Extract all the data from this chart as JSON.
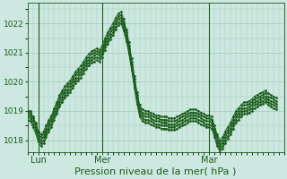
{
  "background_color": "#cce8e0",
  "grid_color": "#a0c8b8",
  "line_color": "#1a5c1a",
  "marker_color": "#1a5c1a",
  "xlabel": "Pression niveau de la mer( hPa )",
  "xlabel_fontsize": 8,
  "yticks": [
    1018,
    1019,
    1020,
    1021,
    1022
  ],
  "ylim": [
    1017.6,
    1022.7
  ],
  "xlim": [
    0,
    96
  ],
  "xtick_positions": [
    4,
    28,
    68
  ],
  "xtick_labels": [
    "Lun",
    "Mer",
    "Mar"
  ],
  "vline_positions": [
    4,
    28,
    68
  ],
  "series": [
    [
      1019.0,
      1019.0,
      1018.8,
      1018.6,
      1018.3,
      1018.2,
      1018.3,
      1018.5,
      1018.7,
      1018.85,
      1019.1,
      1019.3,
      1019.55,
      1019.7,
      1019.85,
      1019.95,
      1020.05,
      1020.2,
      1020.35,
      1020.45,
      1020.55,
      1020.7,
      1020.85,
      1020.95,
      1021.05,
      1021.1,
      1021.15,
      1021.1,
      1021.25,
      1021.5,
      1021.7,
      1021.85,
      1022.0,
      1022.2,
      1022.35,
      1022.4,
      1022.15,
      1021.8,
      1021.35,
      1020.8,
      1020.2,
      1019.65,
      1019.2,
      1019.05,
      1019.0,
      1019.0,
      1018.95,
      1018.9,
      1018.85,
      1018.85,
      1018.8,
      1018.8,
      1018.8,
      1018.75,
      1018.75,
      1018.75,
      1018.8,
      1018.85,
      1018.9,
      1018.95,
      1019.0,
      1019.05,
      1019.05,
      1019.05,
      1019.0,
      1018.95,
      1018.9,
      1018.85,
      1018.85,
      1018.8,
      1018.5,
      1018.2,
      1018.0,
      1018.1,
      1018.3,
      1018.45,
      1018.6,
      1018.8,
      1019.0,
      1019.1,
      1019.2,
      1019.3,
      1019.3,
      1019.35,
      1019.4,
      1019.5,
      1019.55,
      1019.6,
      1019.65,
      1019.7,
      1019.6,
      1019.55,
      1019.5,
      1019.45
    ],
    [
      1019.0,
      1018.95,
      1018.75,
      1018.55,
      1018.25,
      1018.1,
      1018.2,
      1018.4,
      1018.6,
      1018.75,
      1019.0,
      1019.2,
      1019.45,
      1019.6,
      1019.75,
      1019.85,
      1019.95,
      1020.1,
      1020.25,
      1020.35,
      1020.45,
      1020.6,
      1020.75,
      1020.85,
      1020.95,
      1021.0,
      1021.05,
      1021.0,
      1021.15,
      1021.4,
      1021.6,
      1021.75,
      1021.9,
      1022.1,
      1022.25,
      1022.3,
      1022.05,
      1021.7,
      1021.25,
      1020.7,
      1020.1,
      1019.55,
      1019.1,
      1018.95,
      1018.9,
      1018.9,
      1018.85,
      1018.8,
      1018.75,
      1018.75,
      1018.7,
      1018.7,
      1018.7,
      1018.65,
      1018.65,
      1018.65,
      1018.7,
      1018.75,
      1018.8,
      1018.85,
      1018.9,
      1018.95,
      1018.95,
      1018.95,
      1018.9,
      1018.85,
      1018.8,
      1018.75,
      1018.75,
      1018.7,
      1018.4,
      1018.1,
      1017.9,
      1018.0,
      1018.2,
      1018.35,
      1018.5,
      1018.7,
      1018.9,
      1019.0,
      1019.1,
      1019.2,
      1019.2,
      1019.25,
      1019.3,
      1019.4,
      1019.45,
      1019.5,
      1019.55,
      1019.6,
      1019.5,
      1019.45,
      1019.4,
      1019.35
    ],
    [
      1018.9,
      1018.85,
      1018.65,
      1018.45,
      1018.15,
      1018.0,
      1018.1,
      1018.3,
      1018.5,
      1018.65,
      1018.9,
      1019.1,
      1019.35,
      1019.5,
      1019.65,
      1019.75,
      1019.85,
      1020.0,
      1020.15,
      1020.25,
      1020.35,
      1020.5,
      1020.65,
      1020.75,
      1020.85,
      1020.9,
      1020.95,
      1020.9,
      1021.05,
      1021.3,
      1021.5,
      1021.65,
      1021.8,
      1022.0,
      1022.15,
      1022.2,
      1021.95,
      1021.6,
      1021.15,
      1020.6,
      1020.0,
      1019.45,
      1019.0,
      1018.85,
      1018.8,
      1018.8,
      1018.75,
      1018.7,
      1018.65,
      1018.65,
      1018.6,
      1018.6,
      1018.6,
      1018.55,
      1018.55,
      1018.55,
      1018.6,
      1018.65,
      1018.7,
      1018.75,
      1018.8,
      1018.85,
      1018.85,
      1018.85,
      1018.8,
      1018.75,
      1018.7,
      1018.65,
      1018.65,
      1018.6,
      1018.3,
      1018.0,
      1017.8,
      1017.9,
      1018.1,
      1018.25,
      1018.4,
      1018.6,
      1018.8,
      1018.9,
      1019.0,
      1019.1,
      1019.1,
      1019.15,
      1019.2,
      1019.3,
      1019.35,
      1019.4,
      1019.45,
      1019.5,
      1019.4,
      1019.35,
      1019.3,
      1019.25
    ],
    [
      1018.8,
      1018.75,
      1018.55,
      1018.35,
      1018.05,
      1017.9,
      1018.0,
      1018.2,
      1018.4,
      1018.55,
      1018.8,
      1019.0,
      1019.25,
      1019.4,
      1019.55,
      1019.65,
      1019.75,
      1019.9,
      1020.05,
      1020.15,
      1020.25,
      1020.4,
      1020.55,
      1020.65,
      1020.75,
      1020.8,
      1020.85,
      1020.8,
      1020.95,
      1021.2,
      1021.4,
      1021.55,
      1021.7,
      1021.9,
      1022.05,
      1022.1,
      1021.85,
      1021.5,
      1021.05,
      1020.5,
      1019.9,
      1019.35,
      1018.9,
      1018.75,
      1018.7,
      1018.7,
      1018.65,
      1018.6,
      1018.55,
      1018.55,
      1018.5,
      1018.5,
      1018.5,
      1018.45,
      1018.45,
      1018.45,
      1018.5,
      1018.55,
      1018.6,
      1018.65,
      1018.7,
      1018.75,
      1018.75,
      1018.75,
      1018.7,
      1018.65,
      1018.6,
      1018.55,
      1018.55,
      1018.5,
      1018.2,
      1017.9,
      1017.7,
      1017.8,
      1018.0,
      1018.15,
      1018.3,
      1018.5,
      1018.7,
      1018.8,
      1018.9,
      1019.0,
      1019.0,
      1019.05,
      1019.1,
      1019.2,
      1019.25,
      1019.3,
      1019.35,
      1019.4,
      1019.3,
      1019.25,
      1019.2,
      1019.15
    ],
    [
      1018.7,
      1018.65,
      1018.45,
      1018.25,
      1017.95,
      1017.8,
      1017.9,
      1018.1,
      1018.3,
      1018.45,
      1018.7,
      1018.9,
      1019.15,
      1019.3,
      1019.45,
      1019.55,
      1019.65,
      1019.8,
      1019.95,
      1020.05,
      1020.15,
      1020.3,
      1020.45,
      1020.55,
      1020.65,
      1020.7,
      1020.75,
      1020.7,
      1020.85,
      1021.1,
      1021.3,
      1021.45,
      1021.6,
      1021.8,
      1021.95,
      1022.0,
      1021.75,
      1021.4,
      1020.95,
      1020.4,
      1019.8,
      1019.25,
      1018.8,
      1018.65,
      1018.6,
      1018.6,
      1018.55,
      1018.5,
      1018.45,
      1018.45,
      1018.4,
      1018.4,
      1018.4,
      1018.35,
      1018.35,
      1018.35,
      1018.4,
      1018.45,
      1018.5,
      1018.55,
      1018.6,
      1018.65,
      1018.65,
      1018.65,
      1018.6,
      1018.55,
      1018.5,
      1018.45,
      1018.45,
      1018.4,
      1018.1,
      1017.8,
      1017.6,
      1017.7,
      1017.9,
      1018.05,
      1018.2,
      1018.4,
      1018.6,
      1018.7,
      1018.8,
      1018.9,
      1018.9,
      1018.95,
      1019.0,
      1019.1,
      1019.15,
      1019.2,
      1019.25,
      1019.3,
      1019.2,
      1019.15,
      1019.1,
      1019.05
    ]
  ]
}
